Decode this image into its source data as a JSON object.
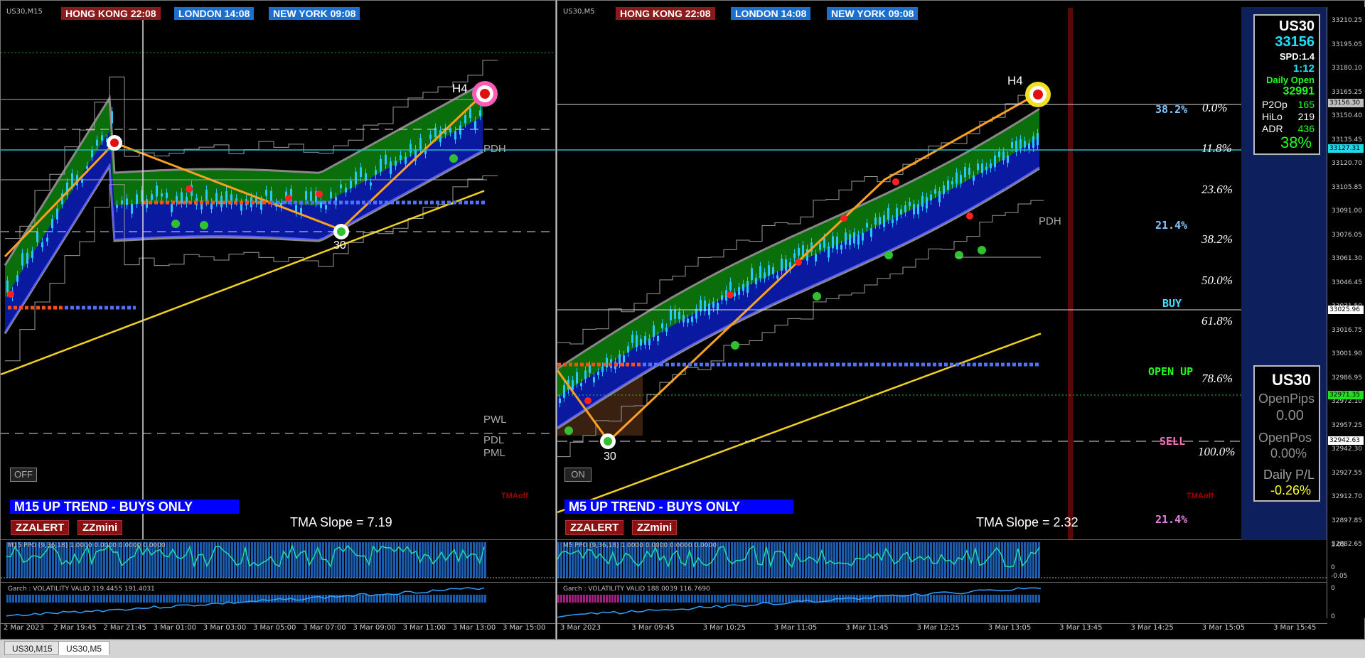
{
  "clocks": {
    "hk": "HONG KONG 22:08",
    "ld": "LONDON  14:08",
    "ny": "NEW YORK 09:08"
  },
  "m15": {
    "symbol": "US30,M15",
    "trend": "M15 UP TREND - BUYS ONLY",
    "toggle": "OFF",
    "slope": "TMA Slope = 7.19",
    "zzalert": "ZZALERT",
    "zzmini": "ZZmini",
    "tmaoff": "TMAoff",
    "h4": "H4",
    "swing_low": "30",
    "pdh": "PDH",
    "pwl": "PWL",
    "pdl": "PDL",
    "pml": "PML",
    "ppo": "M15 PPO (9,36,18) 1.0000 0.0000 0.0000 0.0000",
    "garch": "Garch : VOLATILITY VALID 319.4455 191.4031",
    "times": [
      "2 Mar 2023",
      "2 Mar 19:45",
      "2 Mar 21:45",
      "3 Mar 01:00",
      "3 Mar 03:00",
      "3 Mar 05:00",
      "3 Mar 07:00",
      "3 Mar 09:00",
      "3 Mar 11:00",
      "3 Mar 13:00",
      "3 Mar 15:00"
    ]
  },
  "m5": {
    "symbol": "US30,M5",
    "trend": "M5 UP TREND - BUYS ONLY",
    "toggle": "ON",
    "slope": "TMA Slope = 2.32",
    "zzalert": "ZZALERT",
    "zzmini": "ZZmini",
    "tmaoff": "TMAoff",
    "h4": "H4",
    "swing_low": "30",
    "pdh": "PDH",
    "ppo": "M5 PPO (9,36,18) 1.0000 0.0000 0.0000 0.0000",
    "garch": "Garch : VOLATILITY VALID 188.0039 116.7690",
    "times": [
      "3 Mar 2023",
      "3 Mar 09:45",
      "3 Mar 10:25",
      "3 Mar 11:05",
      "3 Mar 11:45",
      "3 Mar 12:25",
      "3 Mar 13:05",
      "3 Mar 13:45",
      "3 Mar 14:25",
      "3 Mar 15:05",
      "3 Mar 15:45"
    ],
    "fib": [
      "0.0%",
      "11.8%",
      "23.6%",
      "38.2%",
      "50.0%",
      "61.8%",
      "78.6%",
      "100.0%"
    ],
    "fib_left": [
      "38.2%",
      "21.4%",
      "21.4%"
    ],
    "levels": {
      "buy": "BUY",
      "open_up": "OPEN UP",
      "sell": "SELL"
    }
  },
  "price_axis": [
    "33210.25",
    "33195.05",
    "33180.10",
    "33165.25",
    "33150.40",
    "33135.45",
    "33120.70",
    "33105.85",
    "33091.00",
    "33076.05",
    "33061.30",
    "33046.45",
    "33031.50",
    "33016.75",
    "33001.90",
    "32986.95",
    "32972.10",
    "32957.25",
    "32942.30",
    "32927.55",
    "32912.70",
    "32897.85",
    "32882.65"
  ],
  "price_tags": {
    "current": "33156.30",
    "cyan": "33127.31",
    "white": "33025.96",
    "green": "32971.35",
    "sell": "32942.63"
  },
  "ind_axis": {
    "ppo_top": "1.05",
    "ppo_zero": "0",
    "ppo_neg": "-0.05",
    "garch_top": "0",
    "garch_bottom": "0"
  },
  "dashboard": {
    "symbol": "US30",
    "price": "33156",
    "spread": "SPD:1.4",
    "timer": "1:12",
    "daily_open_label": "Daily Open",
    "daily_open": "32991",
    "p2op_label": "P2Op",
    "p2op": "165",
    "hilo_label": "HiLo",
    "hilo": "219",
    "adr_label": "ADR",
    "adr": "436",
    "adr_pct": "38%"
  },
  "pl_panel": {
    "symbol": "US30",
    "open_pips_label": "OpenPips",
    "open_pips": "0.00",
    "open_pos_label": "OpenPos",
    "open_pos": "0.00%",
    "daily_pl_label": "Daily P/L",
    "daily_pl": "-0.26%"
  },
  "tabs": [
    "US30,M15",
    "US30,M5"
  ],
  "colors": {
    "green_band": "#0a6e0a",
    "blue_band": "#0a1aa0",
    "candle": "#28c8ff",
    "zigzag": "#ffa020",
    "ma_yellow": "#f0d020"
  }
}
